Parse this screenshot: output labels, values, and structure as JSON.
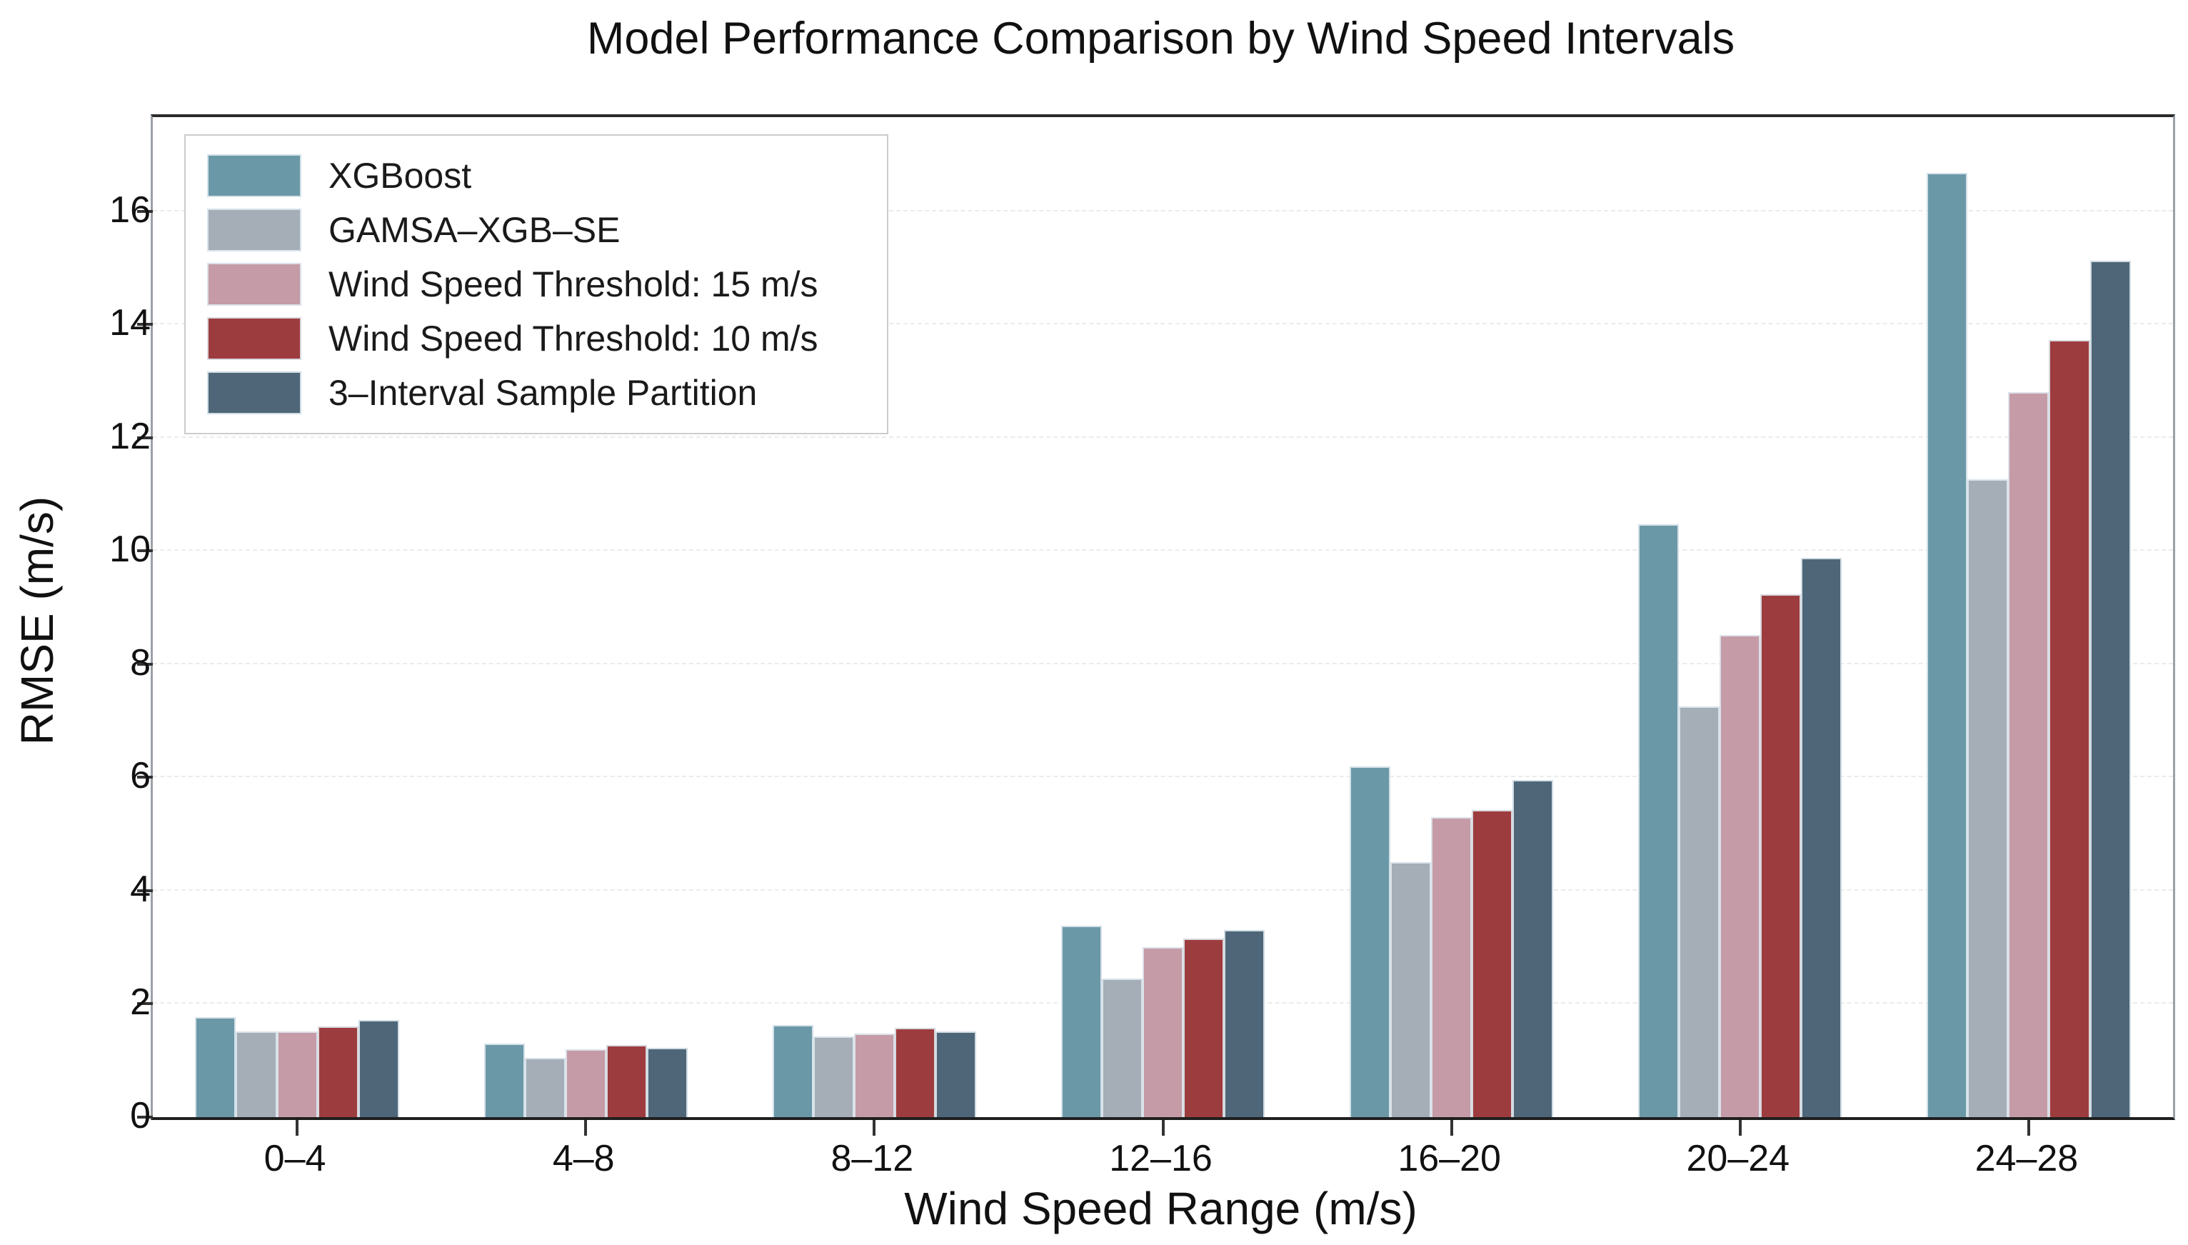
{
  "chart_data": {
    "type": "bar",
    "title": "Model Performance Comparison by Wind Speed Intervals",
    "xlabel": "Wind Speed Range (m/s)",
    "ylabel": "RMSE (m/s)",
    "categories": [
      "0–4",
      "4–8",
      "8–12",
      "12–16",
      "16–20",
      "20–24",
      "24–28"
    ],
    "series": [
      {
        "name": "XGBoost",
        "color": "#6b98a7",
        "values": [
          1.76,
          1.3,
          1.63,
          3.38,
          6.2,
          10.47,
          16.68
        ]
      },
      {
        "name": "GAMSA–XGB–SE",
        "color": "#a5adb6",
        "values": [
          1.51,
          1.05,
          1.42,
          2.45,
          4.5,
          7.25,
          11.26
        ]
      },
      {
        "name": "Wind Speed Threshold: 15 m/s",
        "color": "#c49ba6",
        "values": [
          1.52,
          1.2,
          1.48,
          3.0,
          5.3,
          8.52,
          12.81
        ]
      },
      {
        "name": "Wind Speed Threshold: 10 m/s",
        "color": "#9d3c3e",
        "values": [
          1.6,
          1.28,
          1.58,
          3.15,
          5.42,
          9.23,
          13.72
        ]
      },
      {
        "name": "3–Interval Sample Partition",
        "color": "#4e6678",
        "values": [
          1.72,
          1.23,
          1.52,
          3.3,
          5.95,
          9.88,
          15.12
        ]
      }
    ],
    "yticks": [
      0,
      2,
      4,
      6,
      8,
      10,
      12,
      14,
      16
    ],
    "ylim": [
      0,
      17.66
    ],
    "grid": "horizontal-dashed",
    "legend_position": "upper-left"
  }
}
